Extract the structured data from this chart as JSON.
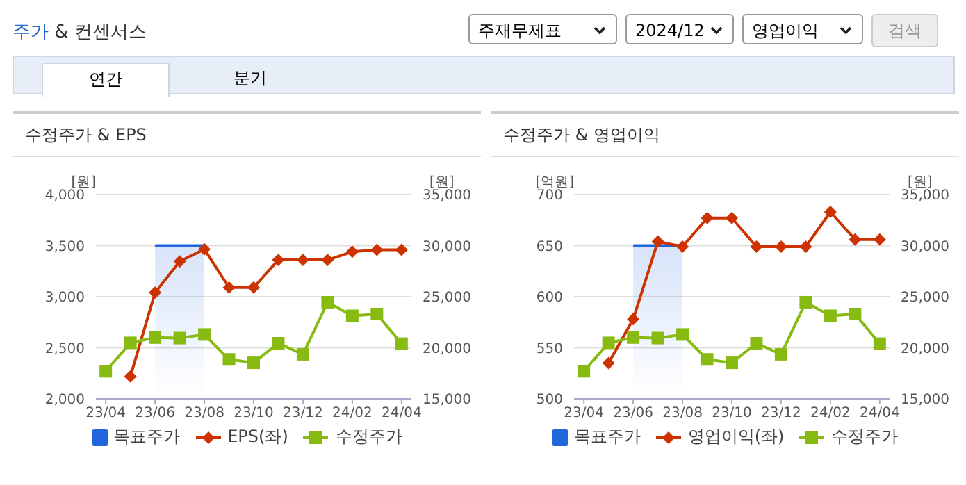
{
  "chart_data": [
    {
      "type": "other",
      "title": "주가 & 컨센서스",
      "annotations": [
        "주재무제표",
        "2024/12",
        "영업이익",
        "검색",
        "연간",
        "분기"
      ]
    },
    {
      "type": "line",
      "title": "수정주가 & EPS",
      "ylabel": "[원]",
      "y2label": "[원]",
      "categories": [
        "23/04",
        null,
        "23/06",
        null,
        "23/08",
        null,
        "23/10",
        null,
        "23/12",
        null,
        "24/02",
        null,
        "24/04"
      ],
      "ylim": [
        2000,
        4000
      ],
      "yticks": [
        {
          "value": 2000,
          "label": "2,000"
        },
        {
          "value": 2500,
          "label": "2,500"
        },
        {
          "value": 3000,
          "label": "3,000"
        },
        {
          "value": 3500,
          "label": "3,500"
        },
        {
          "value": 4000,
          "label": "4,000"
        }
      ],
      "y2lim": [
        15000,
        35000
      ],
      "y2ticks": [
        {
          "value": 15000,
          "label": "15,000"
        },
        {
          "value": 20000,
          "label": "20,000"
        },
        {
          "value": 25000,
          "label": "25,000"
        },
        {
          "value": 30000,
          "label": "30,000"
        },
        {
          "value": 35000,
          "label": "35,000"
        }
      ],
      "grid": "y",
      "legend": "bottom",
      "series": [
        {
          "name": "목표주가",
          "type": "area",
          "axis": "y2",
          "color": "#2266dd",
          "marker": "none",
          "values": [
            null,
            null,
            30000,
            30000,
            30000,
            null,
            null,
            null,
            null,
            null,
            null,
            null,
            null
          ]
        },
        {
          "name": "EPS(좌)",
          "type": "line",
          "color": "#cc3300",
          "marker": "diamond",
          "values": [
            null,
            2220,
            3040,
            3345,
            3465,
            3090,
            3090,
            3360,
            3360,
            3360,
            3440,
            3460,
            3460
          ]
        },
        {
          "name": "수정주가",
          "type": "line",
          "axis": "y2",
          "color": "#88bb11",
          "marker": "square",
          "values": [
            17700,
            20480,
            21000,
            20950,
            21300,
            18860,
            18530,
            20440,
            19360,
            24460,
            23130,
            23300,
            20400
          ]
        }
      ]
    },
    {
      "type": "line",
      "title": "수정주가 & 영업이익",
      "ylabel": "[억원]",
      "y2label": "[원]",
      "categories": [
        "23/04",
        null,
        "23/06",
        null,
        "23/08",
        null,
        "23/10",
        null,
        "23/12",
        null,
        "24/02",
        null,
        "24/04"
      ],
      "ylim": [
        500,
        700
      ],
      "yticks": [
        500,
        550,
        600,
        650,
        700
      ],
      "y2lim": [
        15000,
        35000
      ],
      "y2ticks": [
        {
          "value": 15000,
          "label": "15,000"
        },
        {
          "value": 20000,
          "label": "20,000"
        },
        {
          "value": 25000,
          "label": "25,000"
        },
        {
          "value": 30000,
          "label": "30,000"
        },
        {
          "value": 35000,
          "label": "35,000"
        }
      ],
      "grid": "y",
      "legend": "bottom",
      "series": [
        {
          "name": "목표주가",
          "type": "area",
          "axis": "y2",
          "color": "#2266dd",
          "marker": "none",
          "values": [
            null,
            null,
            30000,
            30000,
            30000,
            null,
            null,
            null,
            null,
            null,
            null,
            null,
            null
          ]
        },
        {
          "name": "영업이익(좌)",
          "type": "line",
          "color": "#cc3300",
          "marker": "diamond",
          "values": [
            null,
            535,
            578,
            654,
            649,
            677,
            677,
            649,
            649,
            649,
            683,
            656,
            656
          ]
        },
        {
          "name": "수정주가",
          "type": "line",
          "axis": "y2",
          "color": "#88bb11",
          "marker": "square",
          "values": [
            17700,
            20480,
            21000,
            20950,
            21300,
            18860,
            18530,
            20440,
            19360,
            24460,
            23130,
            23300,
            20400
          ]
        }
      ]
    }
  ]
}
